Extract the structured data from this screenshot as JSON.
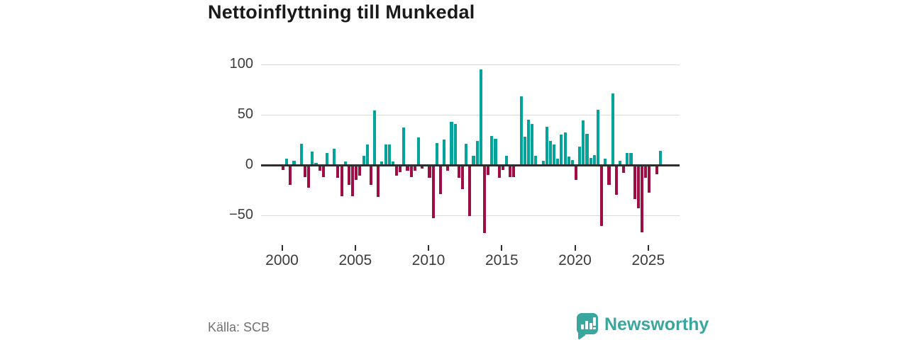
{
  "title": "Nettoinflyttning till Munkedal",
  "source": "Källa: SCB",
  "brand": {
    "name": "Newsworthy",
    "color": "#3aa79e",
    "icon": "speech-bubble-bar-chart-icon"
  },
  "chart_data": {
    "type": "bar",
    "title": "Nettoinflyttning till Munkedal",
    "xlabel": "",
    "ylabel": "",
    "frequency": "quarterly",
    "x_start": {
      "year": 2000,
      "quarter": 1
    },
    "x_end": {
      "year": 2025,
      "quarter": 4
    },
    "values": [
      -4,
      6,
      -19,
      4,
      0,
      21,
      -11,
      -22,
      13,
      2,
      -5,
      -11,
      12,
      0,
      16,
      -12,
      -30,
      3,
      -19,
      -30,
      -14,
      -10,
      9,
      20,
      -19,
      54,
      -31,
      3,
      20,
      20,
      3,
      -10,
      -6,
      37,
      -5,
      -11,
      -5,
      27,
      -3,
      0,
      -12,
      -52,
      22,
      -28,
      25,
      -5,
      43,
      41,
      -12,
      -23,
      21,
      -50,
      9,
      24,
      95,
      -67,
      -9,
      29,
      26,
      -12,
      -4,
      9,
      -11,
      -11,
      0,
      68,
      28,
      45,
      41,
      9,
      0,
      4,
      38,
      24,
      20,
      6,
      30,
      32,
      8,
      5,
      -14,
      18,
      44,
      31,
      7,
      10,
      55,
      -60,
      6,
      -19,
      71,
      -29,
      4,
      -7,
      12,
      12,
      -33,
      -42,
      -66,
      -12,
      -27,
      0,
      -8,
      14
    ],
    "y_ticks": [
      100,
      50,
      0,
      -50
    ],
    "y_tick_labels": [
      "100",
      "50",
      "0",
      "−50"
    ],
    "x_tick_years": [
      2000,
      2005,
      2010,
      2015,
      2020,
      2025
    ],
    "x_tick_labels": [
      "2000",
      "2005",
      "2010",
      "2015",
      "2020",
      "2025"
    ],
    "ylim": [
      -75,
      105
    ],
    "grid": true,
    "legend": "none",
    "positive_color": "#00a49b",
    "negative_color": "#9e0d44"
  }
}
